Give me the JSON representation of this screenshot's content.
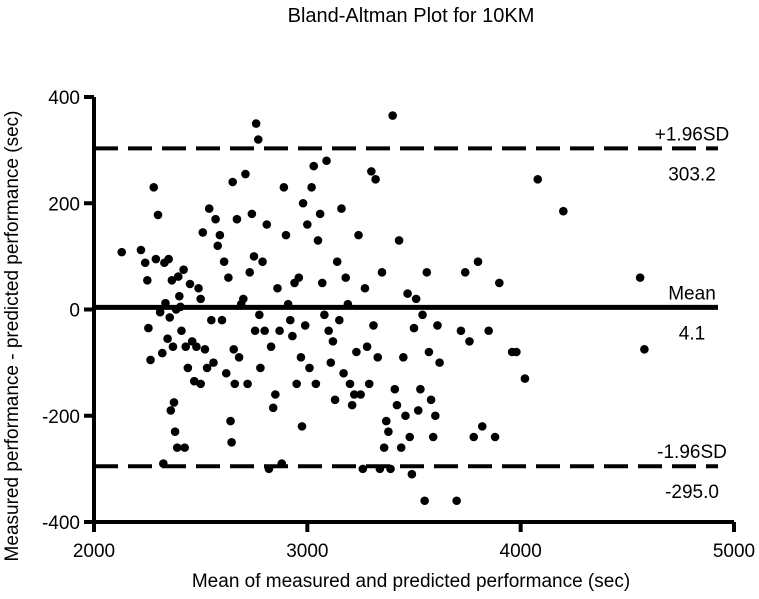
{
  "chart_data": {
    "type": "scatter",
    "title": "Bland-Altman Plot for 10KM",
    "xlabel": "Mean of measured and predicted performance (sec)",
    "ylabel": "Measured performance - predicted performance (sec)",
    "xlim": [
      2000,
      5000
    ],
    "ylim": [
      -400,
      400
    ],
    "x_ticks": [
      2000,
      3000,
      4000,
      5000
    ],
    "y_ticks": [
      -400,
      -200,
      0,
      200,
      400
    ],
    "grid": false,
    "reference_lines": [
      {
        "label": "+1.96SD",
        "value_label": "303.2",
        "y": 303.2,
        "style": "dashed"
      },
      {
        "label": "Mean",
        "value_label": "4.1",
        "y": 4.1,
        "style": "solid"
      },
      {
        "label": "-1.96SD",
        "value_label": "-295.0",
        "y": -295.0,
        "style": "dashed"
      }
    ],
    "points": [
      [
        2130,
        108
      ],
      [
        2220,
        112
      ],
      [
        2240,
        88
      ],
      [
        2250,
        55
      ],
      [
        2255,
        -35
      ],
      [
        2265,
        -95
      ],
      [
        2280,
        230
      ],
      [
        2290,
        95
      ],
      [
        2300,
        178
      ],
      [
        2310,
        -5
      ],
      [
        2320,
        -82
      ],
      [
        2325,
        -290
      ],
      [
        2330,
        88
      ],
      [
        2335,
        12
      ],
      [
        2345,
        -55
      ],
      [
        2350,
        95
      ],
      [
        2355,
        -15
      ],
      [
        2360,
        -190
      ],
      [
        2365,
        55
      ],
      [
        2370,
        -70
      ],
      [
        2375,
        -175
      ],
      [
        2380,
        -230
      ],
      [
        2385,
        0
      ],
      [
        2390,
        -260
      ],
      [
        2395,
        62
      ],
      [
        2400,
        25
      ],
      [
        2405,
        5
      ],
      [
        2410,
        -40
      ],
      [
        2420,
        75
      ],
      [
        2425,
        -260
      ],
      [
        2430,
        -70
      ],
      [
        2440,
        -110
      ],
      [
        2450,
        48
      ],
      [
        2460,
        -60
      ],
      [
        2470,
        -135
      ],
      [
        2480,
        -70
      ],
      [
        2490,
        40
      ],
      [
        2500,
        20
      ],
      [
        2500,
        -140
      ],
      [
        2510,
        145
      ],
      [
        2520,
        -75
      ],
      [
        2530,
        -110
      ],
      [
        2540,
        190
      ],
      [
        2550,
        -20
      ],
      [
        2560,
        -100
      ],
      [
        2570,
        170
      ],
      [
        2580,
        120
      ],
      [
        2590,
        140
      ],
      [
        2600,
        -20
      ],
      [
        2610,
        90
      ],
      [
        2620,
        -120
      ],
      [
        2630,
        60
      ],
      [
        2640,
        -210
      ],
      [
        2645,
        -250
      ],
      [
        2650,
        240
      ],
      [
        2655,
        -75
      ],
      [
        2660,
        -140
      ],
      [
        2670,
        170
      ],
      [
        2680,
        -90
      ],
      [
        2690,
        10
      ],
      [
        2700,
        20
      ],
      [
        2710,
        255
      ],
      [
        2720,
        -140
      ],
      [
        2730,
        70
      ],
      [
        2740,
        180
      ],
      [
        2750,
        100
      ],
      [
        2755,
        -40
      ],
      [
        2760,
        350
      ],
      [
        2770,
        320
      ],
      [
        2775,
        -10
      ],
      [
        2780,
        -110
      ],
      [
        2790,
        90
      ],
      [
        2800,
        -40
      ],
      [
        2810,
        160
      ],
      [
        2820,
        -300
      ],
      [
        2830,
        -70
      ],
      [
        2840,
        -185
      ],
      [
        2850,
        -160
      ],
      [
        2860,
        40
      ],
      [
        2870,
        -40
      ],
      [
        2880,
        -290
      ],
      [
        2890,
        230
      ],
      [
        2900,
        140
      ],
      [
        2910,
        10
      ],
      [
        2920,
        -20
      ],
      [
        2930,
        -50
      ],
      [
        2940,
        50
      ],
      [
        2950,
        -140
      ],
      [
        2960,
        60
      ],
      [
        2970,
        -90
      ],
      [
        2975,
        -220
      ],
      [
        2980,
        200
      ],
      [
        2990,
        -30
      ],
      [
        3000,
        160
      ],
      [
        3010,
        -110
      ],
      [
        3020,
        230
      ],
      [
        3030,
        270
      ],
      [
        3040,
        -140
      ],
      [
        3050,
        130
      ],
      [
        3060,
        180
      ],
      [
        3070,
        50
      ],
      [
        3080,
        -10
      ],
      [
        3090,
        280
      ],
      [
        3100,
        -40
      ],
      [
        3110,
        -100
      ],
      [
        3120,
        -60
      ],
      [
        3130,
        -170
      ],
      [
        3140,
        90
      ],
      [
        3150,
        -20
      ],
      [
        3160,
        190
      ],
      [
        3170,
        -120
      ],
      [
        3180,
        60
      ],
      [
        3190,
        10
      ],
      [
        3200,
        -140
      ],
      [
        3210,
        -180
      ],
      [
        3220,
        -160
      ],
      [
        3230,
        -80
      ],
      [
        3240,
        140
      ],
      [
        3250,
        -160
      ],
      [
        3260,
        -300
      ],
      [
        3270,
        40
      ],
      [
        3280,
        -70
      ],
      [
        3290,
        -140
      ],
      [
        3300,
        260
      ],
      [
        3310,
        -30
      ],
      [
        3320,
        245
      ],
      [
        3330,
        -90
      ],
      [
        3340,
        -300
      ],
      [
        3350,
        70
      ],
      [
        3360,
        -260
      ],
      [
        3370,
        -210
      ],
      [
        3380,
        -230
      ],
      [
        3390,
        -300
      ],
      [
        3400,
        365
      ],
      [
        3410,
        -150
      ],
      [
        3420,
        -180
      ],
      [
        3430,
        130
      ],
      [
        3440,
        -260
      ],
      [
        3450,
        -90
      ],
      [
        3460,
        -200
      ],
      [
        3470,
        30
      ],
      [
        3480,
        -240
      ],
      [
        3490,
        -310
      ],
      [
        3500,
        -35
      ],
      [
        3510,
        20
      ],
      [
        3520,
        -190
      ],
      [
        3530,
        -150
      ],
      [
        3540,
        -10
      ],
      [
        3550,
        -360
      ],
      [
        3560,
        70
      ],
      [
        3570,
        -80
      ],
      [
        3580,
        -170
      ],
      [
        3590,
        -240
      ],
      [
        3600,
        -200
      ],
      [
        3610,
        -30
      ],
      [
        3620,
        -100
      ],
      [
        3700,
        -360
      ],
      [
        3720,
        -40
      ],
      [
        3740,
        70
      ],
      [
        3760,
        -60
      ],
      [
        3780,
        -240
      ],
      [
        3800,
        90
      ],
      [
        3820,
        -220
      ],
      [
        3850,
        -40
      ],
      [
        3880,
        -240
      ],
      [
        3900,
        50
      ],
      [
        3960,
        -80
      ],
      [
        3980,
        -80
      ],
      [
        4020,
        -130
      ],
      [
        4080,
        245
      ],
      [
        4200,
        185
      ],
      [
        4560,
        60
      ],
      [
        4580,
        -75
      ]
    ]
  }
}
